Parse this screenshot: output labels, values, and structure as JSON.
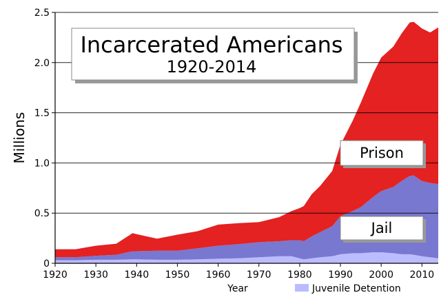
{
  "chart_data": {
    "type": "area",
    "stacked": true,
    "title": "Incarcerated Americans",
    "subtitle": "1920-2014",
    "xlabel": "Year",
    "ylabel": "Millions",
    "xlim": [
      1920,
      2014
    ],
    "ylim": [
      0,
      2.5
    ],
    "x_ticks": [
      1920,
      1930,
      1940,
      1950,
      1960,
      1970,
      1980,
      1990,
      2000,
      2010
    ],
    "y_ticks": [
      0,
      0.5,
      1.0,
      1.5,
      2.0,
      2.5
    ],
    "y_tick_labels": [
      "0",
      "0.5",
      "1.0",
      "1.5",
      "2.0",
      "2.5"
    ],
    "grid": "horizontal",
    "legend": {
      "placement": "bottom-right",
      "entries": [
        {
          "name": "Juvenile Detention",
          "color": "#bbbbff"
        }
      ]
    },
    "x": [
      1920,
      1925,
      1930,
      1935,
      1939,
      1940,
      1945,
      1950,
      1955,
      1960,
      1965,
      1970,
      1975,
      1978,
      1980,
      1981,
      1983,
      1985,
      1988,
      1990,
      1993,
      1995,
      1998,
      2000,
      2003,
      2005,
      2007,
      2008,
      2010,
      2012,
      2014
    ],
    "series": [
      {
        "name": "Juvenile Detention",
        "color": "#bbbbff",
        "values": [
          0.03,
          0.03,
          0.035,
          0.035,
          0.04,
          0.04,
          0.035,
          0.035,
          0.04,
          0.045,
          0.05,
          0.06,
          0.07,
          0.07,
          0.05,
          0.04,
          0.05,
          0.06,
          0.07,
          0.09,
          0.1,
          0.1,
          0.11,
          0.11,
          0.1,
          0.09,
          0.09,
          0.085,
          0.07,
          0.06,
          0.05
        ]
      },
      {
        "name": "Jail",
        "color": "#7878d0",
        "values": [
          0.03,
          0.03,
          0.04,
          0.05,
          0.08,
          0.08,
          0.09,
          0.09,
          0.11,
          0.13,
          0.14,
          0.15,
          0.15,
          0.16,
          0.18,
          0.18,
          0.22,
          0.25,
          0.3,
          0.38,
          0.42,
          0.46,
          0.55,
          0.61,
          0.66,
          0.73,
          0.78,
          0.79,
          0.75,
          0.74,
          0.74
        ]
      },
      {
        "name": "Prison",
        "color": "#e32221",
        "values": [
          0.08,
          0.08,
          0.1,
          0.11,
          0.18,
          0.17,
          0.12,
          0.16,
          0.17,
          0.21,
          0.21,
          0.2,
          0.24,
          0.29,
          0.32,
          0.35,
          0.42,
          0.46,
          0.55,
          0.71,
          0.9,
          1.04,
          1.23,
          1.33,
          1.4,
          1.47,
          1.53,
          1.53,
          1.52,
          1.5,
          1.56
        ]
      }
    ]
  }
}
